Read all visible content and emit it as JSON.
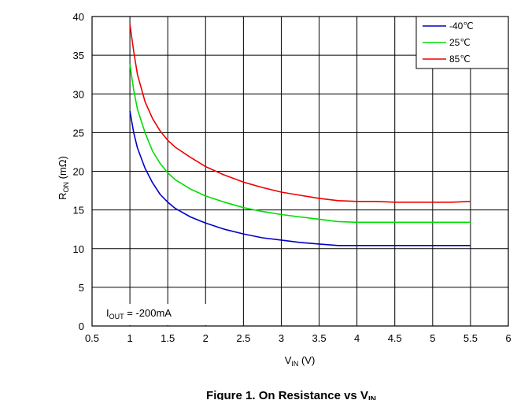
{
  "chart_data": {
    "type": "line",
    "xlabel": {
      "main": "V",
      "sub": "IN",
      "tail": " (V)"
    },
    "ylabel": {
      "main": "R",
      "sub": "ON",
      "tail": " (mΩ)"
    },
    "xlim": [
      0.5,
      6
    ],
    "ylim": [
      0,
      40
    ],
    "xticks": [
      "0.5",
      "1",
      "1.5",
      "2",
      "2.5",
      "3",
      "3.5",
      "4",
      "4.5",
      "5",
      "5.5",
      "6"
    ],
    "yticks": [
      "0",
      "5",
      "10",
      "15",
      "20",
      "25",
      "30",
      "35",
      "40"
    ],
    "grid": true,
    "legend_position": "top-right",
    "annotation": {
      "main": "I",
      "sub": "OUT",
      "tail": " = -200mA"
    },
    "caption": {
      "main": "Figure 1. On Resistance vs V",
      "sub": "IN"
    },
    "x": [
      1.0,
      1.05,
      1.1,
      1.2,
      1.3,
      1.4,
      1.5,
      1.6,
      1.8,
      2.0,
      2.25,
      2.5,
      2.75,
      3.0,
      3.25,
      3.5,
      3.75,
      4.0,
      4.25,
      4.5,
      4.75,
      5.0,
      5.25,
      5.5
    ],
    "series": [
      {
        "name": "-40℃",
        "color": "#0000cc",
        "values": [
          27.8,
          25.0,
          23.0,
          20.4,
          18.5,
          17.0,
          16.0,
          15.2,
          14.1,
          13.3,
          12.5,
          11.9,
          11.4,
          11.1,
          10.8,
          10.6,
          10.4,
          10.4,
          10.4,
          10.4,
          10.4,
          10.4,
          10.4,
          10.4
        ]
      },
      {
        "name": "25℃",
        "color": "#00dd00",
        "values": [
          33.8,
          30.5,
          28.0,
          25.0,
          22.6,
          21.0,
          19.8,
          18.9,
          17.7,
          16.8,
          16.0,
          15.3,
          14.8,
          14.4,
          14.1,
          13.8,
          13.5,
          13.4,
          13.4,
          13.4,
          13.4,
          13.4,
          13.4,
          13.4
        ]
      },
      {
        "name": "85℃",
        "color": "#ee0000",
        "values": [
          39.0,
          35.5,
          32.5,
          29.0,
          26.8,
          25.2,
          24.0,
          23.1,
          21.8,
          20.6,
          19.5,
          18.6,
          17.9,
          17.3,
          16.9,
          16.5,
          16.2,
          16.1,
          16.1,
          16.0,
          16.0,
          16.0,
          16.0,
          16.1
        ]
      }
    ]
  }
}
